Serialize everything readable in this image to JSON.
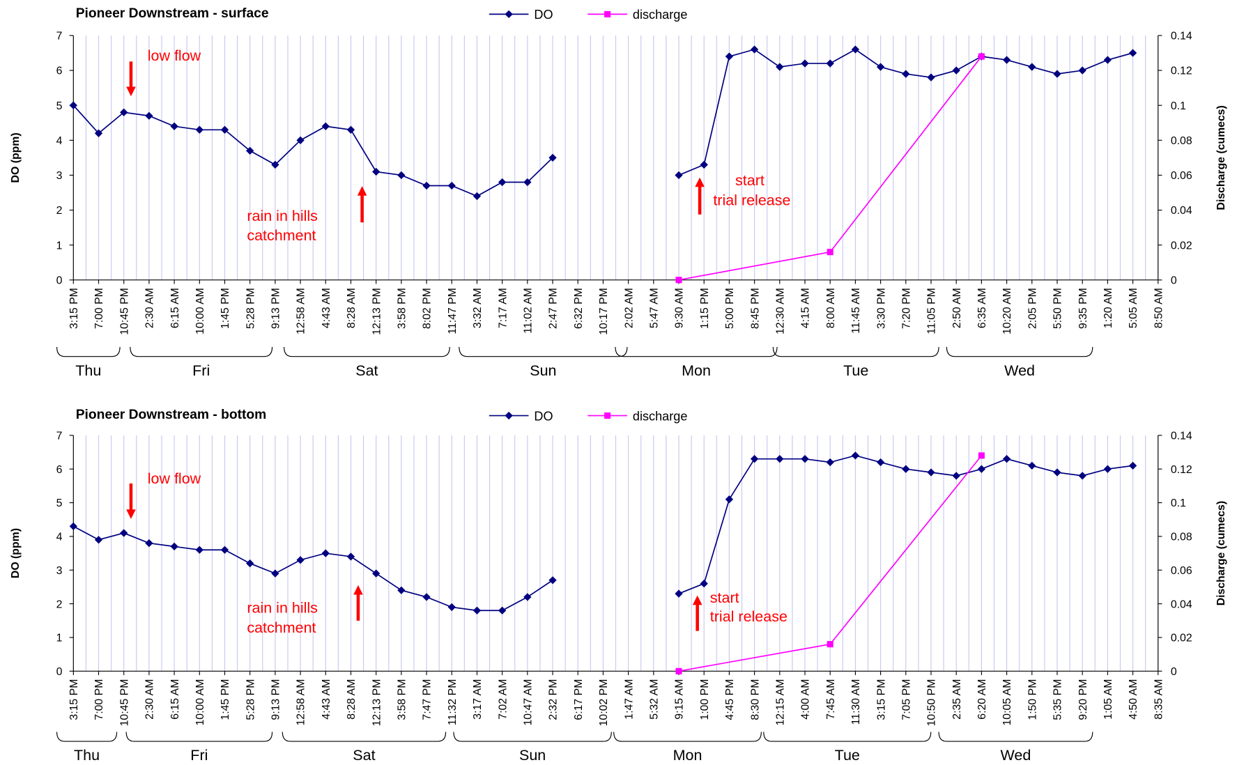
{
  "chart_data": [
    {
      "type": "line",
      "title": "Pioneer Downstream - surface",
      "categories": [
        "3:15 PM",
        "7:00 PM",
        "10:45 PM",
        "2:30 AM",
        "6:15 AM",
        "10:00 AM",
        "1:45 PM",
        "5:28 PM",
        "9:13 PM",
        "12:58 AM",
        "4:43 AM",
        "8:28 AM",
        "12:13 PM",
        "3:58 PM",
        "8:02 PM",
        "11:47 PM",
        "3:32 AM",
        "7:17 AM",
        "11:02 AM",
        "2:47 PM",
        "6:32 PM",
        "10:17 PM",
        "2:02 AM",
        "5:47 AM",
        "9:30 AM",
        "1:15 PM",
        "5:00 PM",
        "8:45 PM",
        "12:30 AM",
        "4:15 AM",
        "8:00 AM",
        "11:45 AM",
        "3:30 PM",
        "7:20 PM",
        "11:05 PM",
        "2:50 AM",
        "6:35 AM",
        "10:20 AM",
        "2:05 PM",
        "5:50 PM",
        "9:35 PM",
        "1:20 AM",
        "5:05 AM",
        "8:50 AM"
      ],
      "series": [
        {
          "name": "DO",
          "color": "#000080",
          "marker": "diamond",
          "values": [
            5.0,
            4.2,
            4.8,
            4.7,
            4.4,
            4.3,
            4.3,
            3.7,
            3.3,
            4.0,
            4.4,
            4.3,
            3.1,
            3.0,
            2.7,
            2.7,
            2.4,
            2.8,
            2.8,
            3.5,
            null,
            null,
            null,
            null,
            3.0,
            3.3,
            6.4,
            6.6,
            6.1,
            6.2,
            6.2,
            6.6,
            6.1,
            5.9,
            5.8,
            6.0,
            6.4,
            6.3,
            6.1,
            5.9,
            6.0,
            6.3,
            6.5,
            null
          ]
        },
        {
          "name": "discharge",
          "color": "#ff00ff",
          "marker": "square",
          "axis": "y2",
          "span_gaps": true,
          "values": [
            null,
            null,
            null,
            null,
            null,
            null,
            null,
            null,
            null,
            null,
            null,
            null,
            null,
            null,
            null,
            null,
            null,
            null,
            null,
            null,
            null,
            null,
            null,
            null,
            0,
            null,
            null,
            null,
            null,
            null,
            0.016,
            null,
            null,
            null,
            null,
            null,
            0.128,
            null,
            null,
            null,
            null,
            null,
            null,
            null
          ]
        }
      ],
      "ylabel": "DO (ppm)",
      "y2label": "Discharge (cumecs)",
      "ylim": [
        0,
        7
      ],
      "yticks": [
        0,
        1,
        2,
        3,
        4,
        5,
        6,
        7
      ],
      "y2lim": [
        0,
        0.14
      ],
      "y2ticks": [
        0,
        0.02,
        0.04,
        0.06,
        0.08,
        0.1,
        0.12,
        0.14
      ],
      "days": [
        "Thu",
        "Fri",
        "Sat",
        "Sun",
        "Mon",
        "Tue",
        "Wed"
      ],
      "annotations": [
        "low flow",
        "rain in hills",
        "catchment",
        "start",
        "trial release"
      ]
    },
    {
      "type": "line",
      "title": "Pioneer Downstream - bottom",
      "categories": [
        "3:15 PM",
        "7:00 PM",
        "10:45 PM",
        "2:30 AM",
        "6:15 AM",
        "10:00 AM",
        "1:45 PM",
        "5:28 PM",
        "9:13 PM",
        "12:58 AM",
        "4:43 AM",
        "8:28 AM",
        "12:13 PM",
        "3:58 PM",
        "7:47 PM",
        "11:32 PM",
        "3:17 AM",
        "7:02 AM",
        "10:47 AM",
        "2:32 PM",
        "6:17 PM",
        "10:02 PM",
        "1:47 AM",
        "5:32 AM",
        "9:15 AM",
        "1:00 PM",
        "4:45 PM",
        "8:30 PM",
        "12:15 AM",
        "4:00 AM",
        "7:45 AM",
        "11:30 AM",
        "3:15 PM",
        "7:05 PM",
        "10:50 PM",
        "2:35 AM",
        "6:20 AM",
        "10:05 AM",
        "1:50 PM",
        "5:35 PM",
        "9:20 PM",
        "1:05 AM",
        "4:50 AM",
        "8:35 AM"
      ],
      "series": [
        {
          "name": "DO",
          "color": "#000080",
          "marker": "diamond",
          "values": [
            4.3,
            3.9,
            4.1,
            3.8,
            3.7,
            3.6,
            3.6,
            3.2,
            2.9,
            3.3,
            3.5,
            3.4,
            2.9,
            2.4,
            2.2,
            1.9,
            1.8,
            1.8,
            2.2,
            2.7,
            null,
            null,
            null,
            null,
            2.3,
            2.6,
            5.1,
            6.3,
            6.3,
            6.3,
            6.2,
            6.4,
            6.2,
            6.0,
            5.9,
            5.8,
            6.0,
            6.3,
            6.1,
            5.9,
            5.8,
            6.0,
            6.1,
            null
          ]
        },
        {
          "name": "discharge",
          "color": "#ff00ff",
          "marker": "square",
          "axis": "y2",
          "span_gaps": true,
          "values": [
            null,
            null,
            null,
            null,
            null,
            null,
            null,
            null,
            null,
            null,
            null,
            null,
            null,
            null,
            null,
            null,
            null,
            null,
            null,
            null,
            null,
            null,
            null,
            null,
            0,
            null,
            null,
            null,
            null,
            null,
            0.016,
            null,
            null,
            null,
            null,
            null,
            0.128,
            null,
            null,
            null,
            null,
            null,
            null,
            null
          ]
        }
      ],
      "ylabel": "DO (ppm)",
      "y2label": "Discharge (cumecs)",
      "ylim": [
        0,
        7
      ],
      "yticks": [
        0,
        1,
        2,
        3,
        4,
        5,
        6,
        7
      ],
      "y2lim": [
        0,
        0.14
      ],
      "y2ticks": [
        0,
        0.02,
        0.04,
        0.06,
        0.08,
        0.1,
        0.12,
        0.14
      ],
      "days": [
        "Thu",
        "Fri",
        "Sat",
        "Sun",
        "Mon",
        "Tue",
        "Wed"
      ],
      "annotations": [
        "low flow",
        "rain in hills",
        "catchment",
        "start",
        "trial release"
      ]
    }
  ]
}
